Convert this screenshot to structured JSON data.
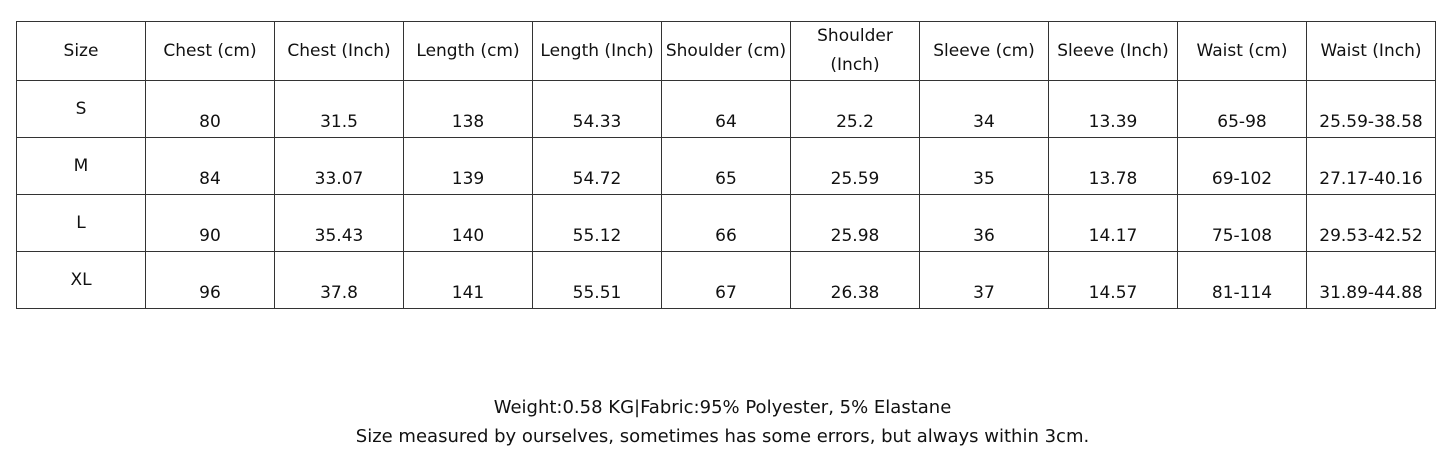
{
  "table": {
    "header": [
      "Size",
      "Chest (cm)",
      "Chest (Inch)",
      "Length (cm)",
      "Length (Inch)",
      "Shoulder (cm)",
      "Shoulder (Inch)",
      "Sleeve (cm)",
      "Sleeve (Inch)",
      "Waist (cm)",
      "Waist (Inch)"
    ],
    "rows": [
      [
        "S",
        "80",
        "31.5",
        "138",
        "54.33",
        "64",
        "25.2",
        "34",
        "13.39",
        "65-98",
        "25.59-38.58"
      ],
      [
        "M",
        "84",
        "33.07",
        "139",
        "54.72",
        "65",
        "25.59",
        "35",
        "13.78",
        "69-102",
        "27.17-40.16"
      ],
      [
        "L",
        "90",
        "35.43",
        "140",
        "55.12",
        "66",
        "25.98",
        "36",
        "14.17",
        "75-108",
        "29.53-42.52"
      ],
      [
        "XL",
        "96",
        "37.8",
        "141",
        "55.51",
        "67",
        "26.38",
        "37",
        "14.57",
        "81-114",
        "31.89-44.88"
      ]
    ]
  },
  "notes": [
    "Weight:0.58 KG|Fabric:95% Polyester, 5% Elastane",
    "Size measured by ourselves, sometimes has some errors, but always within 3cm."
  ]
}
